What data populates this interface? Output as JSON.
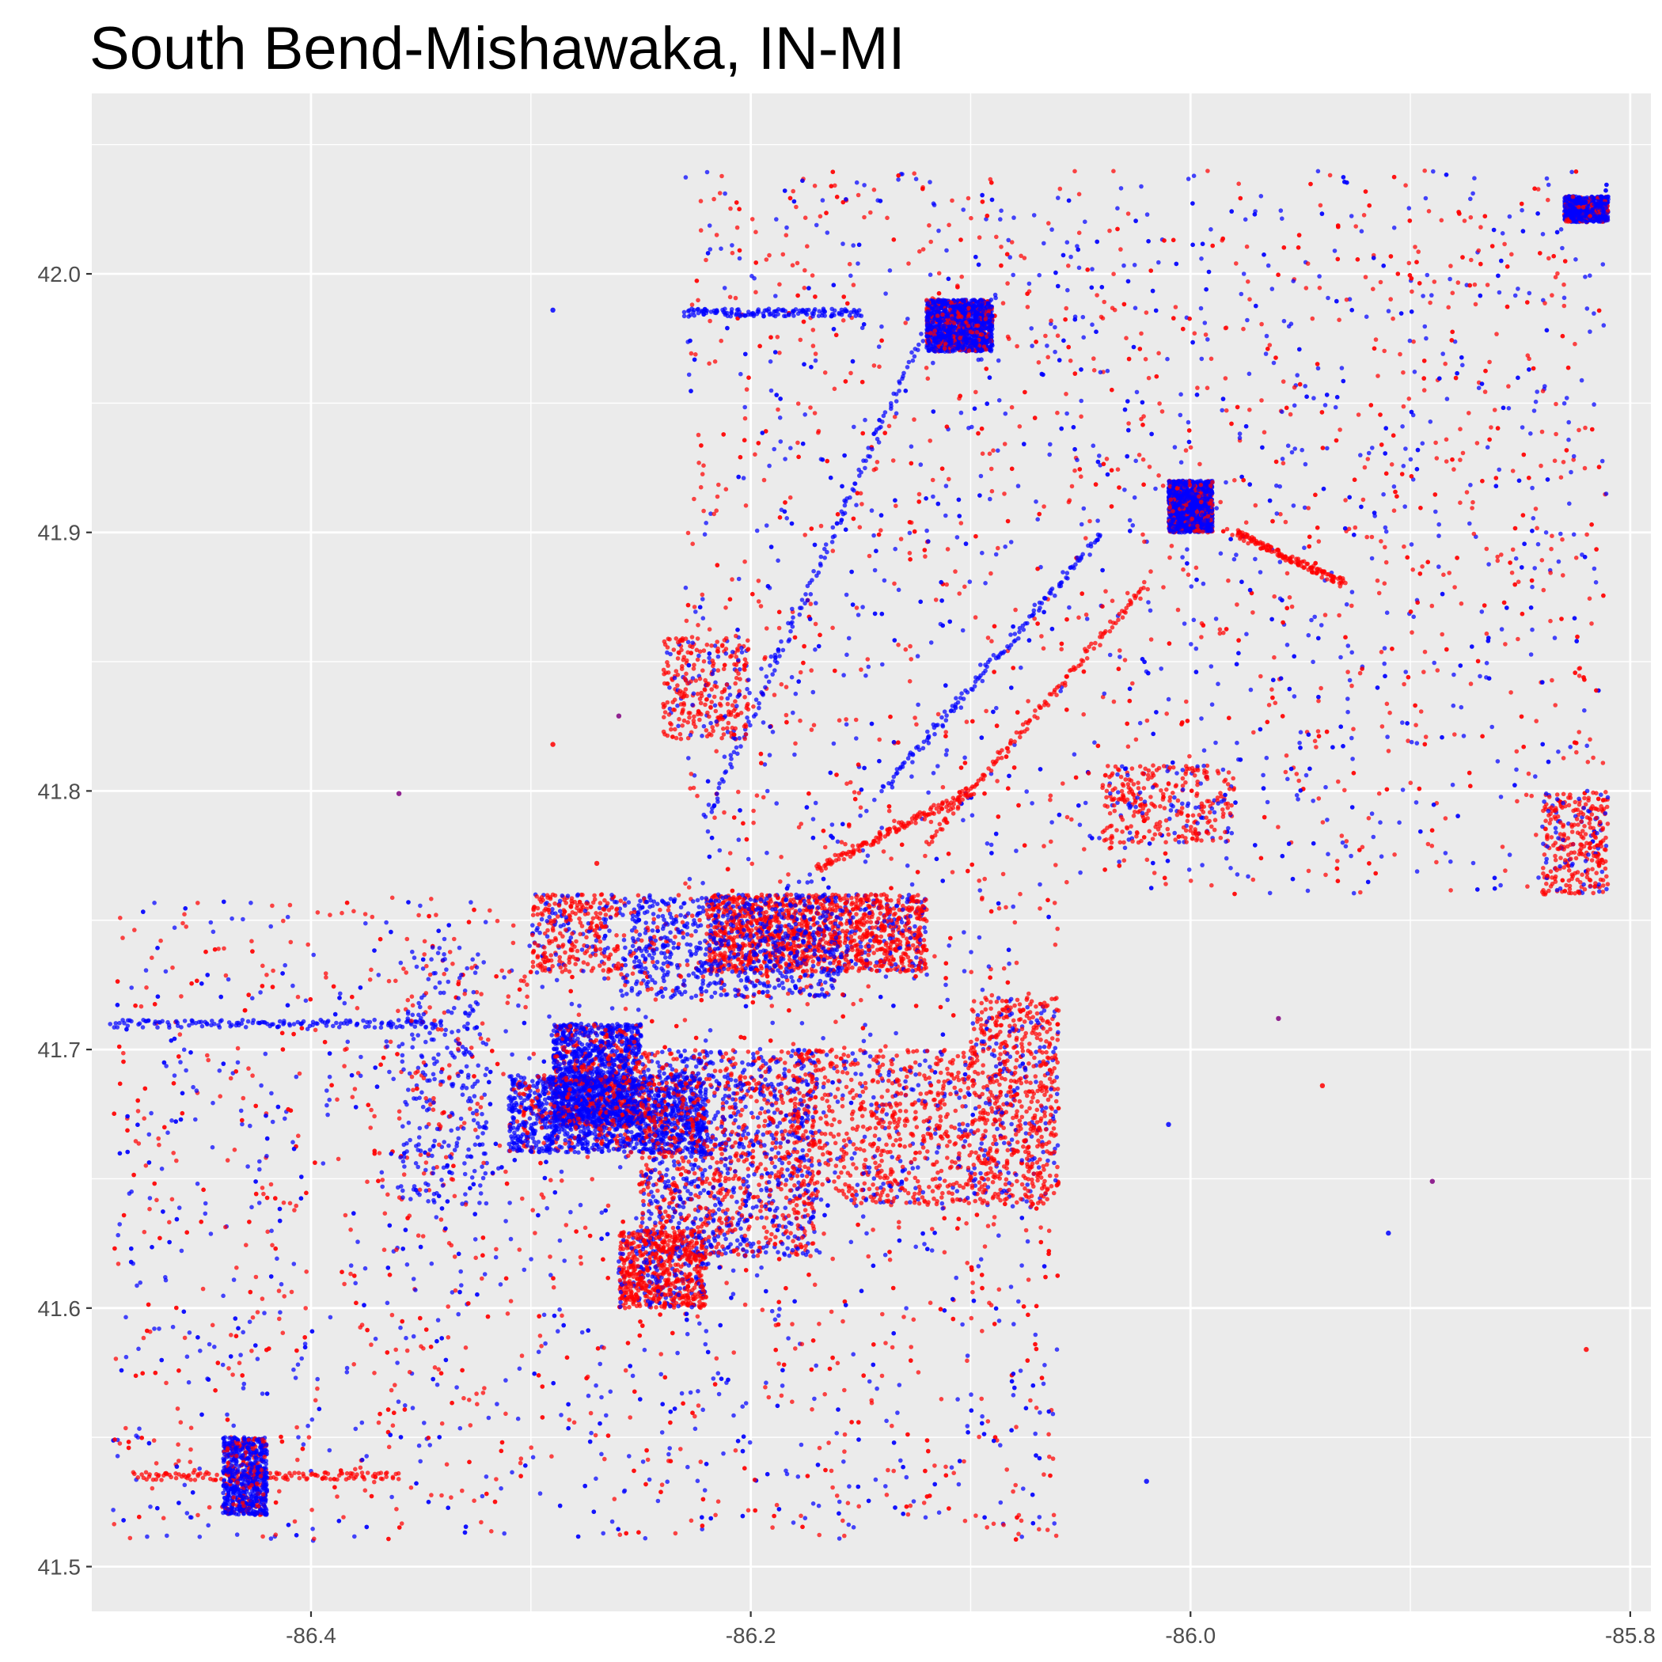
{
  "chart_data": {
    "type": "scatter",
    "title": "South Bend-Mishawaka, IN-MI",
    "xlabel": "",
    "ylabel": "",
    "xlim": [
      -86.4997,
      -85.7906
    ],
    "ylim": [
      41.4827,
      42.0698
    ],
    "x_ticks": [
      -86.4,
      -86.2,
      -86.0,
      -85.8
    ],
    "x_tick_labels": [
      "-86.4",
      "-86.2",
      "-86.0",
      "-85.8"
    ],
    "y_ticks": [
      41.5,
      41.6,
      41.7,
      41.8,
      41.9,
      42.0
    ],
    "y_tick_labels": [
      "41.5",
      "41.6",
      "41.7",
      "41.8",
      "41.9",
      "42.0"
    ],
    "grid": true,
    "background": "#ebebeb",
    "gridline_color": "#ffffff",
    "series_colors": [
      "#ff0000",
      "#0000ff",
      "#800080"
    ],
    "clusters": [
      {
        "color": "#0000ff",
        "lon_range": [
          -86.29,
          -86.25
        ],
        "lat_range": [
          41.67,
          41.71
        ],
        "density": "very-high"
      },
      {
        "color": "#0000ff",
        "lon_range": [
          -86.31,
          -86.22
        ],
        "lat_range": [
          41.66,
          41.69
        ],
        "density": "very-high"
      },
      {
        "color": "#ff0000",
        "lon_range": [
          -86.22,
          -86.12
        ],
        "lat_range": [
          41.73,
          41.76
        ],
        "density": "very-high"
      },
      {
        "color": "#0000ff",
        "lon_range": [
          -86.26,
          -86.16
        ],
        "lat_range": [
          41.72,
          41.76
        ],
        "density": "high"
      },
      {
        "color": "#800080",
        "lon_range": [
          -86.25,
          -86.17
        ],
        "lat_range": [
          41.62,
          41.7
        ],
        "density": "very-high"
      },
      {
        "color": "#ff0000",
        "lon_range": [
          -86.18,
          -86.1
        ],
        "lat_range": [
          41.64,
          41.7
        ],
        "density": "high"
      },
      {
        "color": "#ff0000",
        "lon_range": [
          -86.1,
          -86.06
        ],
        "lat_range": [
          41.64,
          41.72
        ],
        "density": "high"
      },
      {
        "color": "#ff0000",
        "lon_range": [
          -86.26,
          -86.22
        ],
        "lat_range": [
          41.6,
          41.63
        ],
        "density": "high"
      },
      {
        "color": "#0000ff",
        "lon_range": [
          -86.12,
          -86.09
        ],
        "lat_range": [
          41.97,
          41.99
        ],
        "density": "very-high"
      },
      {
        "color": "#0000ff",
        "lon_range": [
          -86.01,
          -85.99
        ],
        "lat_range": [
          41.9,
          41.92
        ],
        "density": "very-high"
      },
      {
        "color": "#0000ff",
        "lon_range": [
          -85.83,
          -85.81
        ],
        "lat_range": [
          42.02,
          42.03
        ],
        "density": "high"
      },
      {
        "color": "#0000ff",
        "lon_range": [
          -86.44,
          -86.42
        ],
        "lat_range": [
          41.52,
          41.55
        ],
        "density": "high"
      },
      {
        "color": "#0000ff",
        "lon_range": [
          -86.36,
          -86.32
        ],
        "lat_range": [
          41.64,
          41.74
        ],
        "density": "medium"
      },
      {
        "color": "#ff0000",
        "lon_range": [
          -86.24,
          -86.2
        ],
        "lat_range": [
          41.82,
          41.86
        ],
        "density": "medium"
      },
      {
        "color": "#ff0000",
        "lon_range": [
          -86.04,
          -85.98
        ],
        "lat_range": [
          41.78,
          41.81
        ],
        "density": "medium"
      },
      {
        "color": "#ff0000",
        "lon_range": [
          -85.84,
          -85.81
        ],
        "lat_range": [
          41.76,
          41.8
        ],
        "density": "medium"
      },
      {
        "color": "#ff0000",
        "lon_range": [
          -86.3,
          -86.26
        ],
        "lat_range": [
          41.73,
          41.76
        ],
        "density": "medium"
      }
    ],
    "region_polygon": [
      [
        -86.49,
        41.51
      ],
      [
        -86.06,
        41.51
      ],
      [
        -86.06,
        41.76
      ],
      [
        -85.81,
        41.76
      ],
      [
        -85.81,
        42.04
      ],
      [
        -86.23,
        42.04
      ],
      [
        -86.23,
        41.76
      ],
      [
        -86.49,
        41.76
      ]
    ],
    "outlier_points": [
      {
        "lon": -86.29,
        "lat": 41.986,
        "color": "#0000ff"
      },
      {
        "lon": -86.36,
        "lat": 41.799,
        "color": "#800080"
      },
      {
        "lon": -86.29,
        "lat": 41.818,
        "color": "#ff0000"
      },
      {
        "lon": -86.26,
        "lat": 41.829,
        "color": "#800080"
      },
      {
        "lon": -86.27,
        "lat": 41.772,
        "color": "#ff0000"
      },
      {
        "lon": -85.96,
        "lat": 41.712,
        "color": "#800080"
      },
      {
        "lon": -85.94,
        "lat": 41.686,
        "color": "#ff0000"
      },
      {
        "lon": -86.01,
        "lat": 41.671,
        "color": "#0000ff"
      },
      {
        "lon": -85.89,
        "lat": 41.649,
        "color": "#800080"
      },
      {
        "lon": -85.91,
        "lat": 41.629,
        "color": "#0000ff"
      },
      {
        "lon": -85.82,
        "lat": 41.584,
        "color": "#ff0000"
      },
      {
        "lon": -86.02,
        "lat": 41.533,
        "color": "#0000ff"
      }
    ]
  }
}
